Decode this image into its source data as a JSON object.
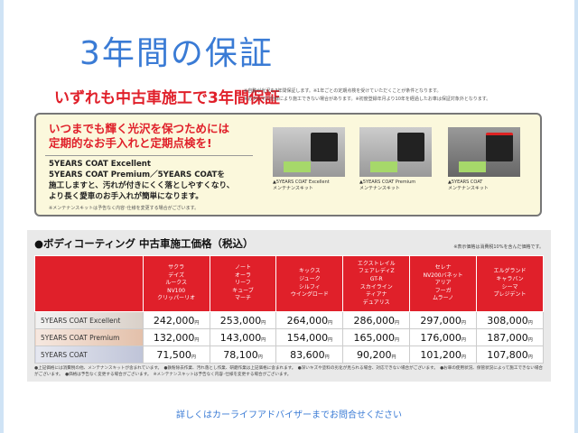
{
  "title": "3年間の保証",
  "banner": "いずれも中古車施工で3年間保証",
  "banner_notes": [
    "※自動が光沢を3年間保証します。※1年ごとの定期点検を受けていただくことが条件となります。",
    "※おクルマの仕様により施工できない場合があります。※初度登録年月より10年を経過したお車は保証対象外となります。"
  ],
  "promo": {
    "headline": [
      "いつまでも輝く光沢を保つためには",
      "定期的なお手入れと定期点検を!"
    ],
    "body": [
      "5YEARS COAT Excellent",
      "5YEARS COAT Premium／5YEARS COATを",
      "施工しますと、汚れが付きにくく落としやすくなり、",
      "より長く愛車のお手入れが簡単になります。"
    ],
    "note": "※メンテナンスキットは予告なく内容･仕様を変更する場合がございます。",
    "kits": [
      {
        "name": "▲5YEARS COAT Excellent",
        "sub": "メンテナンスキット"
      },
      {
        "name": "▲5YEARS COAT Premium",
        "sub": "メンテナンスキット"
      },
      {
        "name": "▲5YEARS COAT",
        "sub": "メンテナンスキット"
      }
    ]
  },
  "pricing": {
    "title": "●ボディコーティング 中古車施工価格（税込）",
    "tax_note": "※表示価格は消費税10%を含んだ価格です。",
    "columns": [
      [
        "サクラ",
        "デイズ",
        "ルークス",
        "NV100",
        "クリッパーリオ"
      ],
      [
        "ノート",
        "オーラ",
        "リーフ",
        "キューブ",
        "マーチ"
      ],
      [
        "キックス",
        "ジューク",
        "シルフィ",
        "ウイングロード"
      ],
      [
        "エクストレイル",
        "フェアレディZ",
        "GT-R",
        "スカイライン",
        "ティアナ",
        "デュアリス"
      ],
      [
        "セレナ",
        "NV200バネット",
        "アリア",
        "フーガ",
        "ムラーノ"
      ],
      [
        "エルグランド",
        "キャラバン",
        "シーマ",
        "プレジデント"
      ]
    ],
    "yen": "円",
    "rows": [
      {
        "label": "5YEARS COAT Excellent",
        "prices": [
          "242,000",
          "253,000",
          "264,000",
          "286,000",
          "297,000",
          "308,000"
        ]
      },
      {
        "label": "5YEARS COAT Premium",
        "prices": [
          "132,000",
          "143,000",
          "154,000",
          "165,000",
          "176,000",
          "187,000"
        ]
      },
      {
        "label": "5YEARS COAT",
        "prices": [
          "71,500",
          "78,100",
          "83,600",
          "90,200",
          "101,200",
          "107,800"
        ]
      }
    ],
    "footnotes": "●上記価格には消費税の他、メンテナンスキットが含まれています。　●鉄粉除去作業、汚れ落とし作業、研磨作業は上記価格に含まれます。　●深いキズや塗料の劣化が見られる場合、対応できない場合がございます。　●お車の使用状況、保管状況によって施工できない場合がございます。　●価格は予告なく変更する場合がございます。　※メンテナンスキットは予告なく内容･仕様を変更する場合がございます。"
  },
  "bottom_text": "詳しくはカーライフアドバイザーまでお問合せください"
}
